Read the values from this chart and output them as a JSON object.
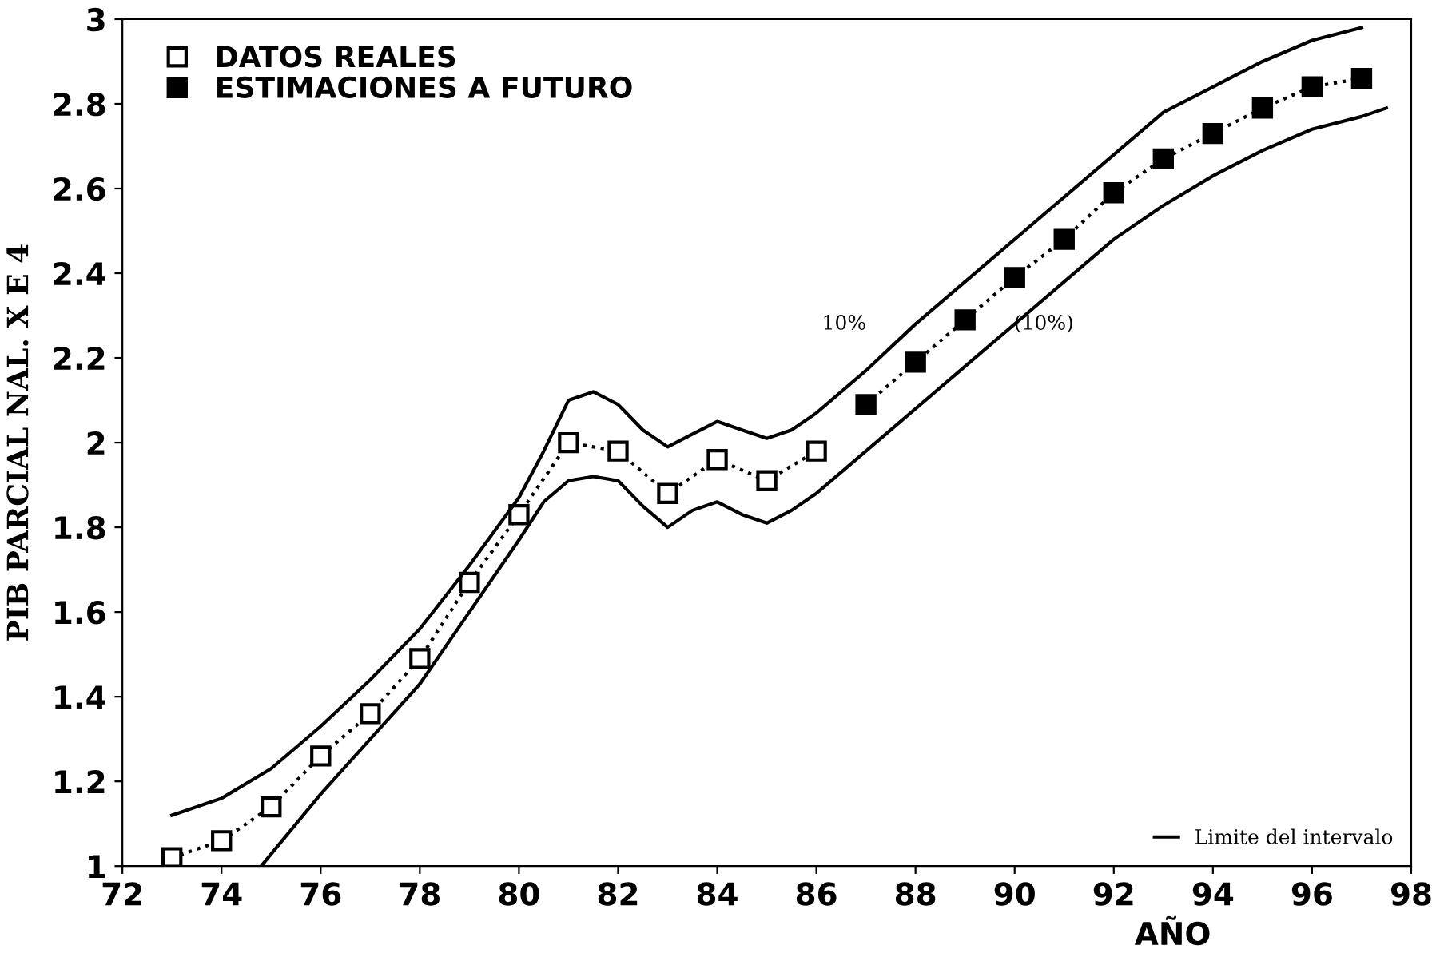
{
  "chart_data": {
    "type": "line",
    "xlabel": "AÑO",
    "ylabel": "PIB PARCIAL NAL. X E 4",
    "xlim": [
      72,
      98
    ],
    "xticks": [
      72,
      74,
      76,
      78,
      80,
      82,
      84,
      86,
      88,
      90,
      92,
      94,
      96,
      98
    ],
    "ylim": [
      1,
      3
    ],
    "yticks": [
      1,
      1.2,
      1.4,
      1.6,
      1.8,
      2,
      2.2,
      2.4,
      2.6,
      2.8,
      3
    ],
    "grid": false,
    "legend": [
      "top left",
      "bottom right"
    ],
    "series": [
      {
        "name": "DATOS REALES",
        "color": "#ffffff",
        "marker": "square",
        "line_style": "dotted",
        "x": [
          73,
          74,
          75,
          76,
          77,
          78,
          79,
          80,
          81,
          82,
          83,
          84,
          85,
          86
        ],
        "values": [
          1.02,
          1.06,
          1.14,
          1.26,
          1.36,
          1.49,
          1.67,
          1.83,
          2.0,
          1.98,
          1.88,
          1.96,
          1.91,
          1.98
        ]
      },
      {
        "name": "ESTIMACIONES A FUTURO",
        "color": "#000000",
        "marker": "square",
        "line_style": "dotted",
        "x": [
          87,
          88,
          89,
          90,
          91,
          92,
          93,
          94,
          95,
          96,
          97
        ],
        "values": [
          2.09,
          2.19,
          2.29,
          2.39,
          2.48,
          2.59,
          2.67,
          2.73,
          2.79,
          2.84,
          2.86
        ]
      },
      {
        "name": "Limite del intervalo",
        "color": "#000000",
        "marker": "none",
        "line_style": "solid",
        "x": [
          73,
          74,
          75,
          76,
          77,
          78,
          79,
          80,
          80.5,
          81,
          81.5,
          82,
          82.5,
          83,
          83.5,
          84,
          84.5,
          85,
          85.5,
          86,
          87,
          88,
          89,
          90,
          91,
          92,
          93,
          94,
          95,
          96,
          97
        ],
        "values": [
          1.12,
          1.16,
          1.23,
          1.33,
          1.44,
          1.56,
          1.71,
          1.87,
          1.98,
          2.1,
          2.12,
          2.09,
          2.03,
          1.99,
          2.02,
          2.05,
          2.03,
          2.01,
          2.03,
          2.07,
          2.17,
          2.28,
          2.38,
          2.48,
          2.58,
          2.68,
          2.78,
          2.84,
          2.9,
          2.95,
          2.98
        ]
      },
      {
        "color": "#000000",
        "marker": "none",
        "line_style": "solid",
        "x": [
          74.8,
          76,
          77,
          78,
          79,
          80,
          80.5,
          81,
          81.5,
          82,
          82.5,
          83,
          83.5,
          84,
          84.5,
          85,
          85.5,
          86,
          87,
          88,
          89,
          90,
          91,
          92,
          93,
          94,
          95,
          96,
          97,
          97.5
        ],
        "values": [
          1.0,
          1.17,
          1.3,
          1.43,
          1.6,
          1.77,
          1.86,
          1.91,
          1.92,
          1.91,
          1.85,
          1.8,
          1.84,
          1.86,
          1.83,
          1.81,
          1.84,
          1.88,
          1.98,
          2.08,
          2.18,
          2.28,
          2.38,
          2.48,
          2.56,
          2.63,
          2.69,
          2.74,
          2.77,
          2.79
        ]
      }
    ],
    "annotations": [
      "10%",
      "(10%)"
    ]
  }
}
